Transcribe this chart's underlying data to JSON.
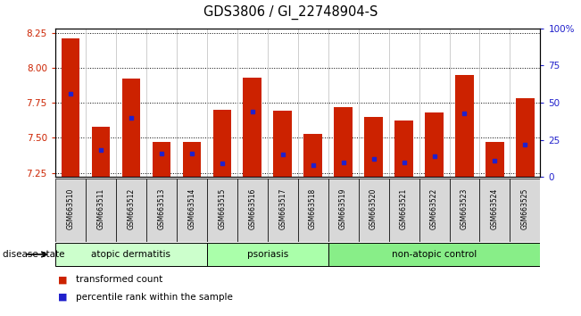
{
  "title": "GDS3806 / GI_22748904-S",
  "samples": [
    "GSM663510",
    "GSM663511",
    "GSM663512",
    "GSM663513",
    "GSM663514",
    "GSM663515",
    "GSM663516",
    "GSM663517",
    "GSM663518",
    "GSM663519",
    "GSM663520",
    "GSM663521",
    "GSM663522",
    "GSM663523",
    "GSM663524",
    "GSM663525"
  ],
  "transformed_count": [
    8.21,
    7.58,
    7.92,
    7.47,
    7.47,
    7.7,
    7.93,
    7.69,
    7.53,
    7.72,
    7.65,
    7.62,
    7.68,
    7.95,
    7.47,
    7.78
  ],
  "percentile_rank_pct": [
    56,
    18,
    40,
    16,
    16,
    9,
    44,
    15,
    8,
    10,
    12,
    10,
    14,
    43,
    11,
    22
  ],
  "bar_color": "#cc2200",
  "marker_color": "#2020cc",
  "ylim_left": [
    7.22,
    8.28
  ],
  "ylim_right": [
    0,
    100
  ],
  "yticks_left": [
    7.25,
    7.5,
    7.75,
    8.0,
    8.25
  ],
  "yticks_right": [
    0,
    25,
    50,
    75,
    100
  ],
  "ytick_labels_right": [
    "0",
    "25",
    "50",
    "75",
    "100%"
  ],
  "bar_width": 0.6,
  "disease_groups": [
    {
      "label": "atopic dermatitis",
      "start": 0,
      "end": 4,
      "color": "#ccffcc"
    },
    {
      "label": "psoriasis",
      "start": 5,
      "end": 8,
      "color": "#aaffaa"
    },
    {
      "label": "non-atopic control",
      "start": 9,
      "end": 15,
      "color": "#88ee88"
    }
  ],
  "disease_state_label": "disease state",
  "legend_items": [
    {
      "label": "transformed count",
      "color": "#cc2200"
    },
    {
      "label": "percentile rank within the sample",
      "color": "#2020cc"
    }
  ],
  "tick_label_color_left": "#cc2200",
  "tick_label_color_right": "#2020cc",
  "sample_box_color": "#d8d8d8"
}
